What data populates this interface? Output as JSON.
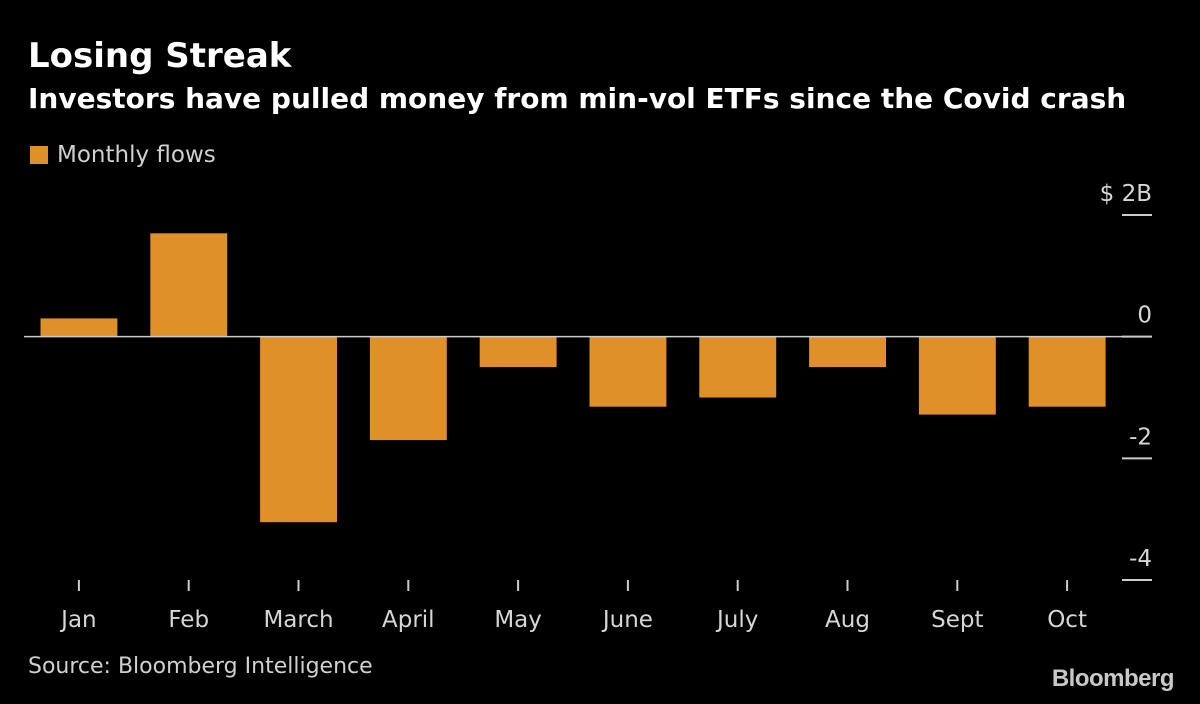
{
  "title": "Losing Streak",
  "subtitle": "Investors have pulled money from min-vol ETFs since the Covid crash",
  "legend": {
    "label": "Monthly flows"
  },
  "source": "Source: Bloomberg Intelligence",
  "brand": "Bloomberg",
  "colors": {
    "bar": "#e09028",
    "background": "#000000",
    "axis": "#cccccc",
    "text": "#d6d6d6"
  },
  "chart_data": {
    "type": "bar",
    "title": "Losing Streak",
    "subtitle": "Investors have pulled money from min-vol ETFs since the Covid crash",
    "categories": [
      "Jan",
      "Feb",
      "March",
      "April",
      "May",
      "June",
      "July",
      "Aug",
      "Sept",
      "Oct"
    ],
    "series": [
      {
        "name": "Monthly flows",
        "values": [
          0.3,
          1.7,
          -3.05,
          -1.7,
          -0.5,
          -1.15,
          -1.0,
          -0.5,
          -1.28,
          -1.15
        ]
      }
    ],
    "ylim": [
      -4,
      2
    ],
    "yticks": [
      2,
      0,
      -2,
      -4
    ],
    "ytick_labels": [
      "$ 2B",
      "0",
      "-2",
      "-4"
    ],
    "y_axis_side": "right",
    "legend_position": "top-left",
    "grid": false
  }
}
